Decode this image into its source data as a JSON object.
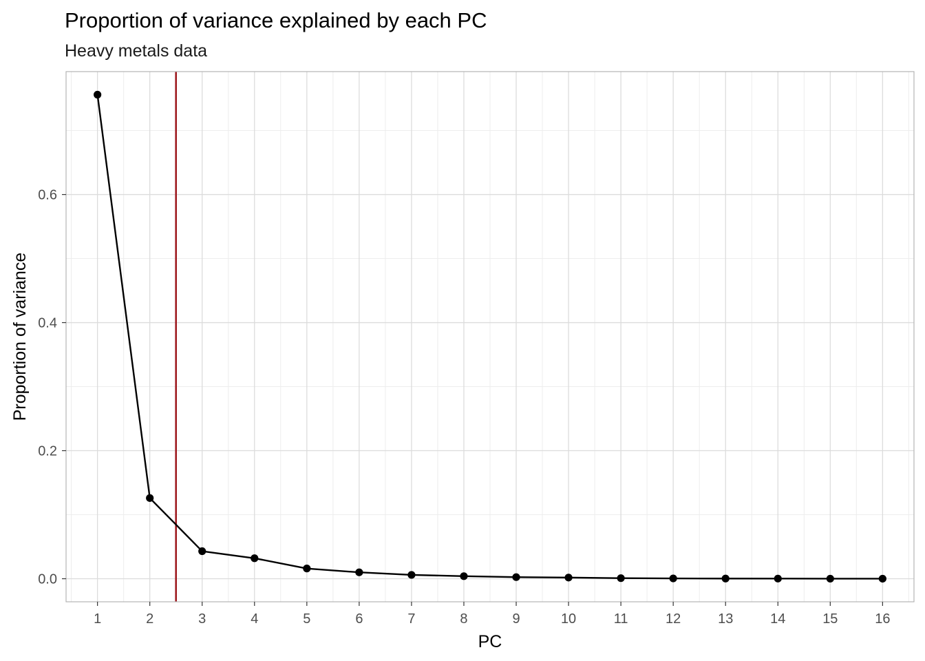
{
  "chart_data": {
    "type": "line",
    "title": "Proportion of variance explained by each PC",
    "subtitle": "Heavy metals data",
    "xlabel": "PC",
    "ylabel": "Proportion of variance",
    "x": [
      1,
      2,
      3,
      4,
      5,
      6,
      7,
      8,
      9,
      10,
      11,
      12,
      13,
      14,
      15,
      16
    ],
    "series": [
      {
        "values": [
          0.756,
          0.126,
          0.043,
          0.032,
          0.016,
          0.01,
          0.006,
          0.004,
          0.0025,
          0.0018,
          0.0009,
          0.0005,
          0.0003,
          0.0002,
          0.0001,
          5e-05
        ]
      }
    ],
    "x_ticks": [
      "1",
      "2",
      "3",
      "4",
      "5",
      "6",
      "7",
      "8",
      "9",
      "10",
      "11",
      "12",
      "13",
      "14",
      "15",
      "16"
    ],
    "y_ticks": [
      "0.0",
      "0.2",
      "0.4",
      "0.6"
    ],
    "y_tick_values": [
      0.0,
      0.2,
      0.4,
      0.6
    ],
    "xlim": [
      0.4,
      16.6
    ],
    "ylim": [
      -0.036,
      0.792
    ],
    "reference_line": {
      "orientation": "vertical",
      "x": 2.5,
      "color": "#9e1b20"
    },
    "line_color": "#000000",
    "point_color": "#000000",
    "grid": true,
    "legend": "none"
  }
}
